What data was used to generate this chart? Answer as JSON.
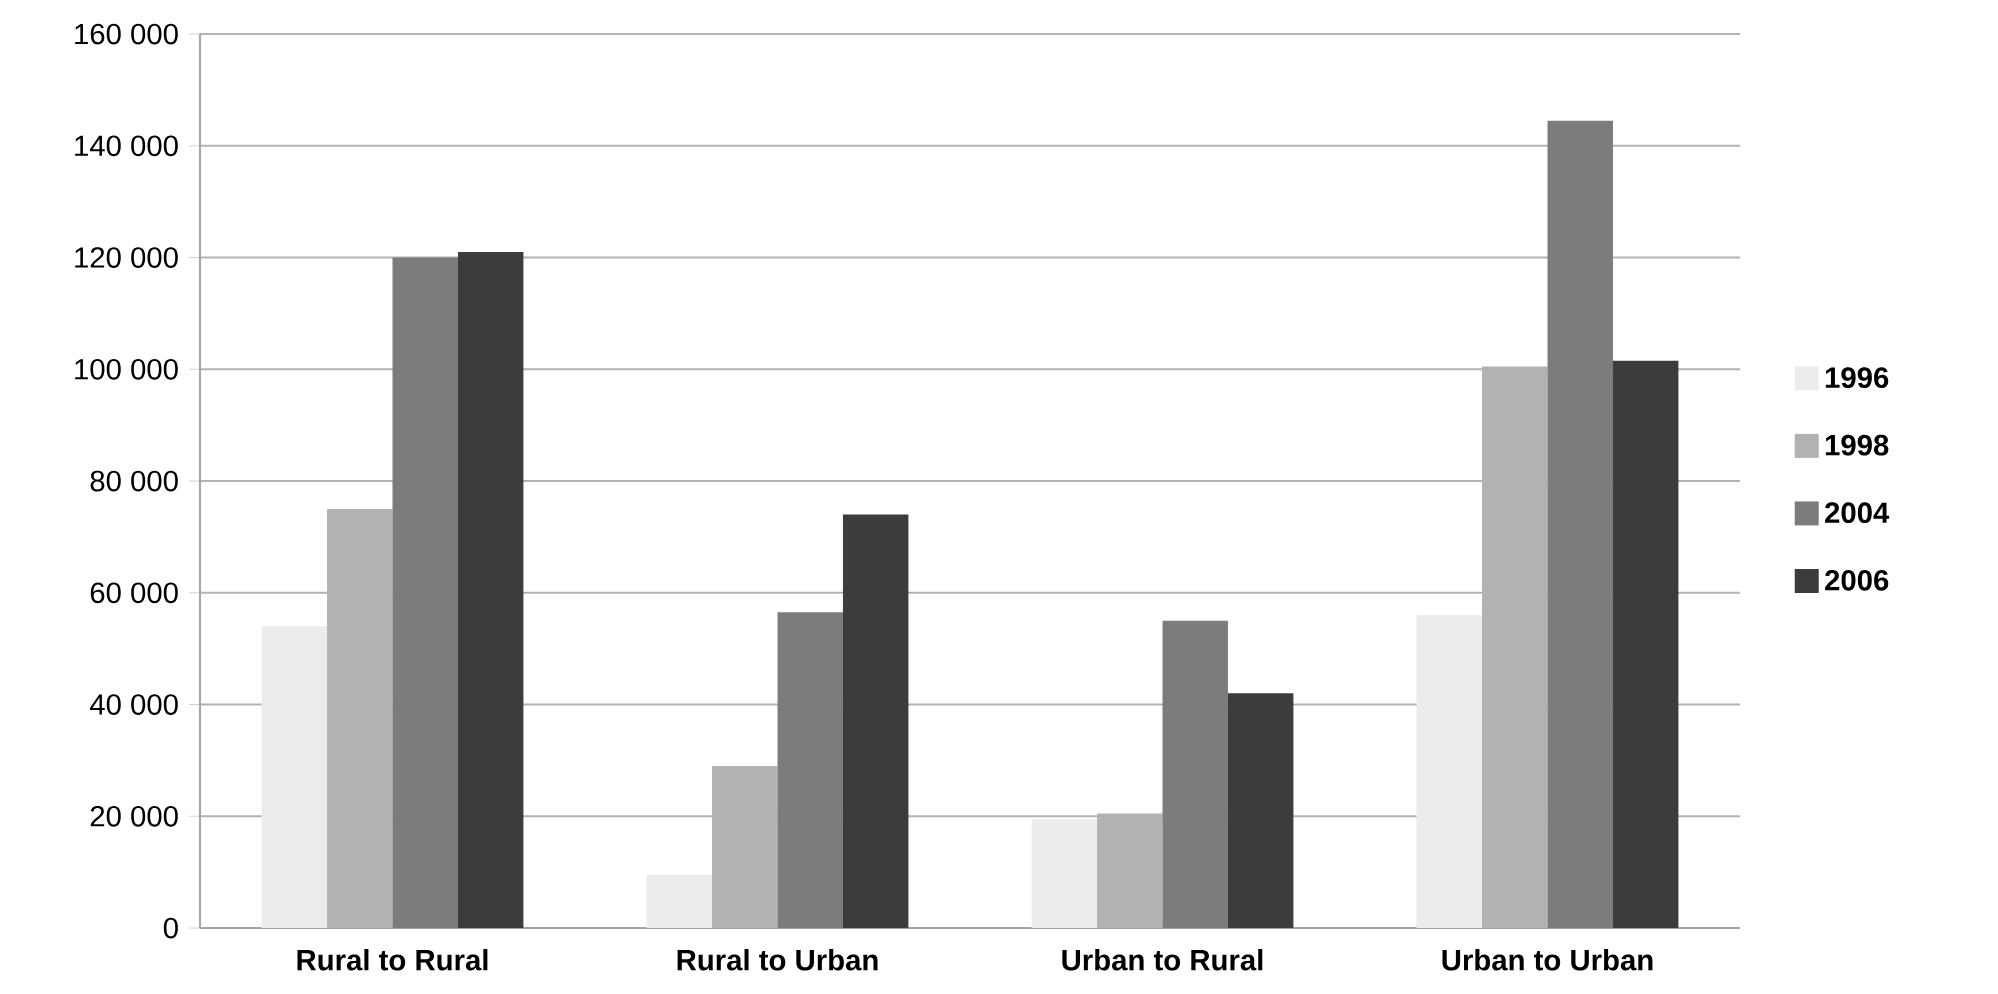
{
  "chart_data": {
    "type": "bar",
    "categories": [
      "Rural to Rural",
      "Rural to Urban",
      "Urban to Rural",
      "Urban to Urban"
    ],
    "series": [
      {
        "name": "1996",
        "color": "#ececec",
        "values": [
          54000,
          9500,
          19500,
          56000
        ]
      },
      {
        "name": "1998",
        "color": "#b2b2b2",
        "values": [
          75000,
          29000,
          20500,
          100500
        ]
      },
      {
        "name": "2004",
        "color": "#7c7c7c",
        "values": [
          120000,
          56500,
          55000,
          144500
        ]
      },
      {
        "name": "2006",
        "color": "#3c3c3b",
        "values": [
          121000,
          74000,
          42000,
          101500
        ]
      }
    ],
    "ylim": [
      0,
      160000
    ],
    "yticks": [
      0,
      {
        "value": 20000,
        "label": "20 000"
      },
      {
        "value": 40000,
        "label": "40 000"
      },
      {
        "value": 60000,
        "label": "60 000"
      },
      {
        "value": 80000,
        "label": "80 000"
      },
      {
        "value": 100000,
        "label": "100 000"
      },
      {
        "value": 120000,
        "label": "120 000"
      },
      {
        "value": 140000,
        "label": "140 000"
      },
      {
        "value": 160000,
        "label": "160 000"
      }
    ],
    "grid": "y",
    "legend": "right"
  }
}
